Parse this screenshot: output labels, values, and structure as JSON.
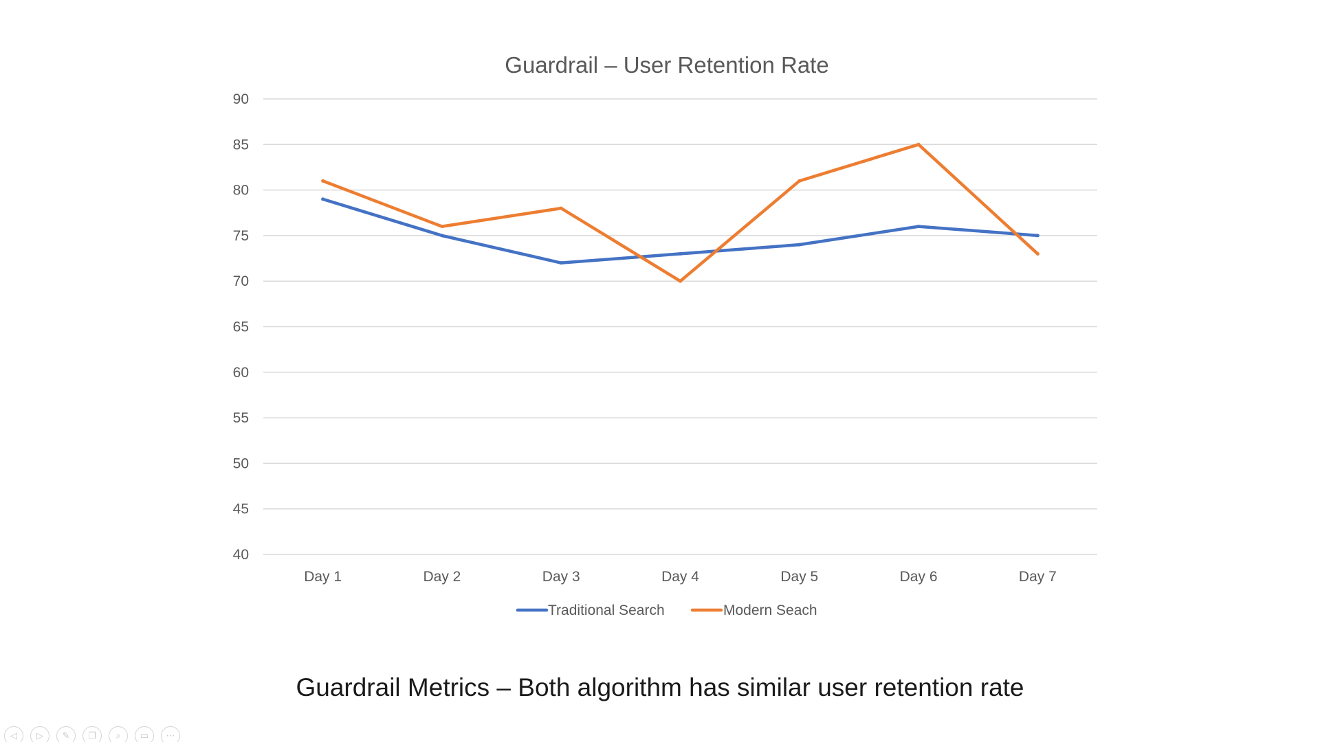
{
  "chart_data": {
    "type": "line",
    "title": "Guardrail – User Retention Rate",
    "categories": [
      "Day 1",
      "Day 2",
      "Day 3",
      "Day 4",
      "Day 5",
      "Day 6",
      "Day 7"
    ],
    "series": [
      {
        "name": "Traditional Search",
        "color": "#4472C4",
        "values": [
          79,
          75,
          72,
          73,
          74,
          76,
          75
        ]
      },
      {
        "name": "Modern Seach",
        "color": "#ED7D31",
        "values": [
          81,
          76,
          78,
          70,
          81,
          85,
          73
        ]
      }
    ],
    "ylim": [
      40,
      90
    ],
    "yticks": [
      "40",
      "45",
      "50",
      "55",
      "60",
      "65",
      "70",
      "75",
      "80",
      "85",
      "90"
    ],
    "grid": true,
    "legend_position": "bottom"
  },
  "caption": "Guardrail Metrics – Both algorithm has similar user retention rate",
  "controls": [
    {
      "icon": "previous-icon",
      "glyph": "◁"
    },
    {
      "icon": "next-icon",
      "glyph": "▷"
    },
    {
      "icon": "pen-icon",
      "glyph": "✎"
    },
    {
      "icon": "slides-icon",
      "glyph": "❐"
    },
    {
      "icon": "zoom-icon",
      "glyph": "⌕"
    },
    {
      "icon": "subtitles-icon",
      "glyph": "▭"
    },
    {
      "icon": "more-icon",
      "glyph": "⋯"
    }
  ]
}
